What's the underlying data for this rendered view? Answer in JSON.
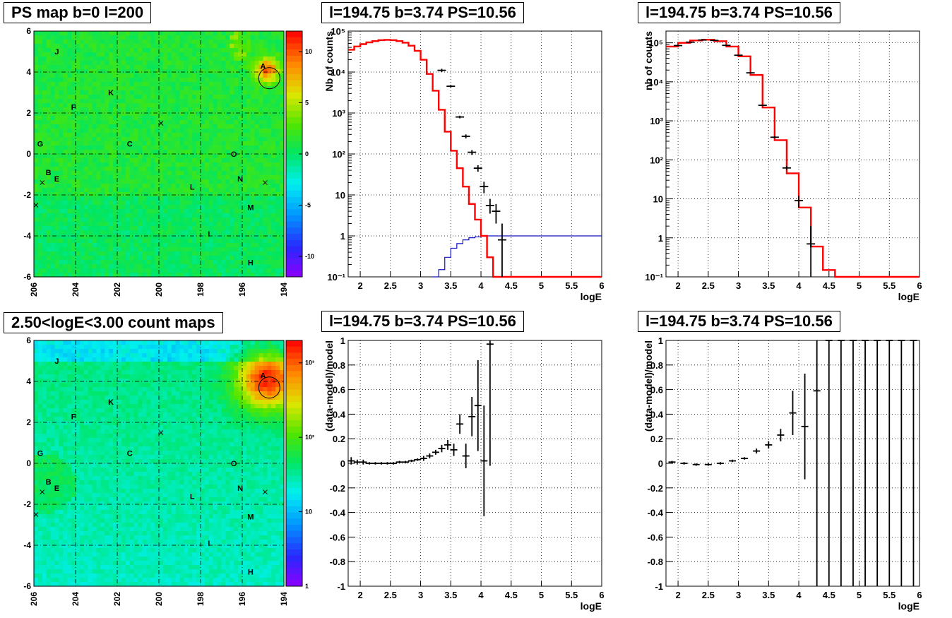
{
  "panels": {
    "ps_map_title": "PS map b=0 l=200",
    "count_map_title": "2.50<logE<3.00 count maps",
    "spec_title_1": "l=194.75 b=3.74 PS=10.56",
    "spec_title_2": "l=194.75 b=3.74 PS=10.56",
    "ratio_title_1": "l=194.75 b=3.74 PS=10.56",
    "ratio_title_2": "l=194.75 b=3.74 PS=10.56"
  },
  "chart_data": [
    {
      "id": "ps_map",
      "type": "heatmap",
      "title": "PS map b=0 l=200",
      "x_ticks": [
        "206",
        "204",
        "202",
        "200",
        "198",
        "196",
        "194"
      ],
      "y_ticks": [
        "-6",
        "-4",
        "-2",
        "0",
        "2",
        "4",
        "6"
      ],
      "xlim": [
        206,
        194
      ],
      "ylim": [
        -6,
        6
      ],
      "colorbar_ticks": [
        "10",
        "5",
        "0",
        "-5",
        "-10"
      ],
      "colorbar_range": [
        -12,
        12
      ],
      "grid": true,
      "labels": [
        {
          "text": "J",
          "l": 204.9,
          "b": 5.0
        },
        {
          "text": "A",
          "l": 195.0,
          "b": 4.3
        },
        {
          "text": "K",
          "l": 202.3,
          "b": 3.0
        },
        {
          "text": "F",
          "l": 204.1,
          "b": 2.3
        },
        {
          "text": "G",
          "l": 205.7,
          "b": 0.5
        },
        {
          "text": "C",
          "l": 201.4,
          "b": 0.5
        },
        {
          "text": "O",
          "l": 196.4,
          "b": 0.0
        },
        {
          "text": "B",
          "l": 205.3,
          "b": -0.9
        },
        {
          "text": "E",
          "l": 204.9,
          "b": -1.2
        },
        {
          "text": "N",
          "l": 196.1,
          "b": -1.2
        },
        {
          "text": "L",
          "l": 198.4,
          "b": -1.6
        },
        {
          "text": "M",
          "l": 195.6,
          "b": -2.6
        },
        {
          "text": "I",
          "l": 197.6,
          "b": -3.9
        },
        {
          "text": "H",
          "l": 195.6,
          "b": -5.3
        }
      ],
      "crosses": [
        {
          "l": 199.9,
          "b": 1.5
        },
        {
          "l": 205.6,
          "b": -1.4
        },
        {
          "l": 194.9,
          "b": -1.4
        },
        {
          "l": 205.9,
          "b": -2.5
        }
      ],
      "circle": {
        "l": 194.7,
        "b": 3.7
      }
    },
    {
      "id": "count_map",
      "type": "heatmap",
      "title": "2.50<logE<3.00 count maps",
      "x_ticks": [
        "206",
        "204",
        "202",
        "200",
        "198",
        "196",
        "194"
      ],
      "y_ticks": [
        "-6",
        "-4",
        "-2",
        "0",
        "2",
        "4",
        "6"
      ],
      "xlim": [
        206,
        194
      ],
      "ylim": [
        -6,
        6
      ],
      "colorbar_ticks": [
        "10³",
        "10²",
        "10",
        "1"
      ],
      "colorbar_log": true,
      "colorbar_range": [
        1,
        2000
      ],
      "grid": true,
      "labels": [
        {
          "text": "J",
          "l": 204.9,
          "b": 5.0
        },
        {
          "text": "A",
          "l": 195.0,
          "b": 4.3
        },
        {
          "text": "K",
          "l": 202.3,
          "b": 3.0
        },
        {
          "text": "F",
          "l": 204.1,
          "b": 2.3
        },
        {
          "text": "G",
          "l": 205.7,
          "b": 0.5
        },
        {
          "text": "C",
          "l": 201.4,
          "b": 0.5
        },
        {
          "text": "O",
          "l": 196.4,
          "b": 0.0
        },
        {
          "text": "B",
          "l": 205.3,
          "b": -0.9
        },
        {
          "text": "E",
          "l": 204.9,
          "b": -1.2
        },
        {
          "text": "N",
          "l": 196.1,
          "b": -1.2
        },
        {
          "text": "L",
          "l": 198.4,
          "b": -1.6
        },
        {
          "text": "M",
          "l": 195.6,
          "b": -2.6
        },
        {
          "text": "I",
          "l": 197.6,
          "b": -3.9
        },
        {
          "text": "H",
          "l": 195.6,
          "b": -5.3
        }
      ],
      "crosses": [
        {
          "l": 199.9,
          "b": 1.5
        },
        {
          "l": 205.6,
          "b": -1.4
        },
        {
          "l": 194.9,
          "b": -1.4
        },
        {
          "l": 205.9,
          "b": -2.5
        }
      ],
      "circle": {
        "l": 194.7,
        "b": 3.7
      }
    },
    {
      "id": "spectrum_1",
      "type": "line",
      "title": "l=194.75 b=3.74 PS=10.56",
      "xlabel": "logE",
      "ylabel": "Nb of counts",
      "xlim": [
        1.8,
        6
      ],
      "ylim": [
        0.1,
        100000
      ],
      "ylog": true,
      "x_ticks": [
        "2",
        "2.5",
        "3",
        "3.5",
        "4",
        "4.5",
        "5",
        "5.5",
        "6"
      ],
      "y_ticks": [
        "10⁵",
        "10⁴",
        "10³",
        "10²",
        "10",
        "1",
        "10⁻¹"
      ],
      "grid": true,
      "model_bins": {
        "edges": [
          1.8,
          1.9,
          2.0,
          2.1,
          2.2,
          2.3,
          2.4,
          2.5,
          2.6,
          2.7,
          2.8,
          2.9,
          3.0,
          3.1,
          3.2,
          3.3,
          3.4,
          3.5,
          3.6,
          3.7,
          3.8,
          3.9,
          4.0,
          4.1,
          4.2,
          4.3,
          4.4,
          6.0
        ],
        "values": [
          35000,
          42000,
          48000,
          53000,
          57000,
          60000,
          61000,
          60000,
          57000,
          52000,
          44000,
          33000,
          20000,
          9000,
          3500,
          1200,
          350,
          120,
          45,
          16,
          6,
          2.5,
          1.0,
          0.3,
          0.1,
          0.1,
          0.1
        ]
      },
      "points": [
        {
          "x": 3.35,
          "y": 11000,
          "ylo": 10000,
          "yhi": 12000
        },
        {
          "x": 3.5,
          "y": 4500,
          "ylo": 4200,
          "yhi": 4800
        },
        {
          "x": 3.65,
          "y": 800,
          "ylo": 740,
          "yhi": 860
        },
        {
          "x": 3.75,
          "y": 270,
          "ylo": 240,
          "yhi": 300
        },
        {
          "x": 3.85,
          "y": 110,
          "ylo": 95,
          "yhi": 125
        },
        {
          "x": 3.95,
          "y": 45,
          "ylo": 37,
          "yhi": 53
        },
        {
          "x": 4.05,
          "y": 16,
          "ylo": 11,
          "yhi": 21
        },
        {
          "x": 4.15,
          "y": 5.5,
          "ylo": 3.5,
          "yhi": 8
        },
        {
          "x": 4.25,
          "y": 4,
          "ylo": 2,
          "yhi": 6
        },
        {
          "x": 4.35,
          "y": 0.8,
          "ylo": 0.1,
          "yhi": 2
        }
      ],
      "blue_bins": {
        "edges": [
          3.2,
          3.3,
          3.4,
          3.5,
          3.6,
          3.7,
          3.8,
          3.9,
          4.0,
          6.0
        ],
        "values": [
          0.1,
          0.15,
          0.3,
          0.5,
          0.65,
          0.8,
          0.9,
          0.95,
          1.0
        ]
      }
    },
    {
      "id": "spectrum_2",
      "type": "line",
      "title": "l=194.75 b=3.74 PS=10.56",
      "xlabel": "logE",
      "ylabel": "nb of counts",
      "xlim": [
        1.8,
        6
      ],
      "ylim": [
        0.1,
        200000
      ],
      "ylog": true,
      "x_ticks": [
        "2",
        "2.5",
        "3",
        "3.5",
        "4",
        "4.5",
        "5",
        "5.5",
        "6"
      ],
      "y_ticks": [
        "10⁵",
        "10⁴",
        "10³",
        "10²",
        "10",
        "1",
        "10⁻¹"
      ],
      "grid": true,
      "model_bins": {
        "edges": [
          1.8,
          2.0,
          2.2,
          2.4,
          2.6,
          2.8,
          3.0,
          3.2,
          3.4,
          3.6,
          3.8,
          4.0,
          4.2,
          4.4,
          4.6,
          6.0
        ],
        "values": [
          80000,
          100000,
          115000,
          120000,
          110000,
          80000,
          45000,
          15000,
          2200,
          320,
          45,
          6,
          0.6,
          0.15,
          0.1
        ]
      },
      "points": [
        {
          "x": 2.0,
          "y": 85000,
          "ylo": 83000,
          "yhi": 87000
        },
        {
          "x": 2.2,
          "y": 104000,
          "ylo": 102000,
          "yhi": 106000
        },
        {
          "x": 2.4,
          "y": 118000,
          "ylo": 116000,
          "yhi": 120000
        },
        {
          "x": 2.6,
          "y": 115000,
          "ylo": 113000,
          "yhi": 117000
        },
        {
          "x": 2.8,
          "y": 86000,
          "ylo": 84000,
          "yhi": 88000
        },
        {
          "x": 3.0,
          "y": 48000,
          "ylo": 47000,
          "yhi": 49000
        },
        {
          "x": 3.2,
          "y": 17000,
          "ylo": 16500,
          "yhi": 17500
        },
        {
          "x": 3.4,
          "y": 2500,
          "ylo": 2400,
          "yhi": 2600
        },
        {
          "x": 3.6,
          "y": 380,
          "ylo": 360,
          "yhi": 400
        },
        {
          "x": 3.8,
          "y": 62,
          "ylo": 55,
          "yhi": 70
        },
        {
          "x": 4.0,
          "y": 9,
          "ylo": 6,
          "yhi": 12
        },
        {
          "x": 4.2,
          "y": 0.7,
          "ylo": 0.1,
          "yhi": 2
        }
      ]
    },
    {
      "id": "ratio_1",
      "type": "scatter",
      "title": "l=194.75 b=3.74 PS=10.56",
      "xlabel": "logE",
      "ylabel": "(data-model)/model",
      "xlim": [
        1.8,
        6
      ],
      "ylim": [
        -1,
        1
      ],
      "x_ticks": [
        "2",
        "2.5",
        "3",
        "3.5",
        "4",
        "4.5",
        "5",
        "5.5",
        "6"
      ],
      "y_ticks": [
        "1",
        "0.8",
        "0.6",
        "0.4",
        "0.2",
        "0",
        "-0.2",
        "-0.4",
        "-0.6",
        "-0.8",
        "-1"
      ],
      "grid": true,
      "points": [
        {
          "x": 1.85,
          "y": 0.02,
          "e": 0.03
        },
        {
          "x": 1.95,
          "y": 0.01,
          "e": 0.02
        },
        {
          "x": 2.05,
          "y": 0.01,
          "e": 0.02
        },
        {
          "x": 2.15,
          "y": 0.0,
          "e": 0.01
        },
        {
          "x": 2.25,
          "y": 0.0,
          "e": 0.01
        },
        {
          "x": 2.35,
          "y": 0.0,
          "e": 0.01
        },
        {
          "x": 2.45,
          "y": 0.0,
          "e": 0.01
        },
        {
          "x": 2.55,
          "y": 0.0,
          "e": 0.01
        },
        {
          "x": 2.65,
          "y": 0.01,
          "e": 0.01
        },
        {
          "x": 2.75,
          "y": 0.01,
          "e": 0.01
        },
        {
          "x": 2.85,
          "y": 0.02,
          "e": 0.01
        },
        {
          "x": 2.95,
          "y": 0.03,
          "e": 0.01
        },
        {
          "x": 3.05,
          "y": 0.04,
          "e": 0.02
        },
        {
          "x": 3.15,
          "y": 0.06,
          "e": 0.02
        },
        {
          "x": 3.25,
          "y": 0.09,
          "e": 0.02
        },
        {
          "x": 3.35,
          "y": 0.12,
          "e": 0.03
        },
        {
          "x": 3.45,
          "y": 0.15,
          "e": 0.04
        },
        {
          "x": 3.55,
          "y": 0.11,
          "e": 0.05
        },
        {
          "x": 3.65,
          "y": 0.32,
          "e": 0.08
        },
        {
          "x": 3.75,
          "y": 0.06,
          "e": 0.1
        },
        {
          "x": 3.85,
          "y": 0.38,
          "e": 0.16
        },
        {
          "x": 3.95,
          "y": 0.47,
          "e": 0.37
        },
        {
          "x": 4.05,
          "y": 0.02,
          "e": 0.45
        },
        {
          "x": 4.15,
          "y": 0.97,
          "e": 0.99
        }
      ]
    },
    {
      "id": "ratio_2",
      "type": "scatter",
      "title": "l=194.75 b=3.74 PS=10.56",
      "xlabel": "logE",
      "ylabel": "(data-model)/model",
      "xlim": [
        1.8,
        6
      ],
      "ylim": [
        -1,
        1
      ],
      "x_ticks": [
        "2",
        "2.5",
        "3",
        "3.5",
        "4",
        "4.5",
        "5",
        "5.5",
        "6"
      ],
      "y_ticks": [
        "1",
        "0.8",
        "0.6",
        "0.4",
        "0.2",
        "0",
        "-0.2",
        "-0.4",
        "-0.6",
        "-0.8",
        "-1"
      ],
      "grid": true,
      "points": [
        {
          "x": 1.9,
          "y": 0.01,
          "e": 0.01
        },
        {
          "x": 2.1,
          "y": 0.0,
          "e": 0.01
        },
        {
          "x": 2.3,
          "y": -0.01,
          "e": 0.01
        },
        {
          "x": 2.5,
          "y": -0.01,
          "e": 0.01
        },
        {
          "x": 2.7,
          "y": 0.0,
          "e": 0.01
        },
        {
          "x": 2.9,
          "y": 0.02,
          "e": 0.01
        },
        {
          "x": 3.1,
          "y": 0.04,
          "e": 0.01
        },
        {
          "x": 3.3,
          "y": 0.1,
          "e": 0.02
        },
        {
          "x": 3.5,
          "y": 0.15,
          "e": 0.03
        },
        {
          "x": 3.7,
          "y": 0.23,
          "e": 0.05
        },
        {
          "x": 3.9,
          "y": 0.41,
          "e": 0.18
        },
        {
          "x": 4.1,
          "y": 0.3,
          "e": 0.43
        },
        {
          "x": 4.3,
          "y": 0.59,
          "e": 1.6
        },
        {
          "x": 4.5,
          "y": 1,
          "e": 2
        },
        {
          "x": 4.7,
          "y": 1,
          "e": 2
        },
        {
          "x": 4.9,
          "y": 1,
          "e": 2
        },
        {
          "x": 5.1,
          "y": 1,
          "e": 2
        },
        {
          "x": 5.3,
          "y": 1,
          "e": 2
        },
        {
          "x": 5.5,
          "y": 1,
          "e": 2
        },
        {
          "x": 5.7,
          "y": 1,
          "e": 2
        },
        {
          "x": 5.9,
          "y": 1,
          "e": 2
        }
      ]
    }
  ]
}
